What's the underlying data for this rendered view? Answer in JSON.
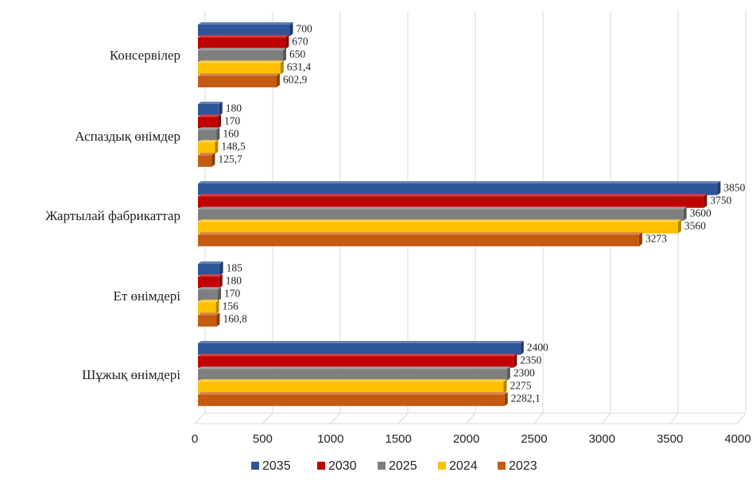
{
  "chart_data": {
    "type": "bar",
    "orientation": "horizontal",
    "style": "3d-clustered",
    "title": "",
    "xlabel": "",
    "ylabel": "",
    "xlim": [
      0,
      4000
    ],
    "x_ticks": [
      "0",
      "500",
      "1000",
      "1500",
      "2000",
      "2500",
      "3000",
      "3500",
      "4000"
    ],
    "grid": "vertical gridlines on",
    "legend_position": "bottom",
    "categories": [
      "Консервілер",
      "Аспаздық өнімдер",
      "Жартылай фабрикаттар",
      "Ет өнімдері",
      "Шұжық өнімдері"
    ],
    "series": [
      {
        "name": "2035",
        "color": "#2e5597",
        "values": [
          700,
          180,
          3850,
          185,
          2400
        ],
        "labels": [
          "700",
          "180",
          "3850",
          "185",
          "2400"
        ]
      },
      {
        "name": "2030",
        "color": "#c00000",
        "values": [
          670,
          170,
          3750,
          180,
          2350
        ],
        "labels": [
          "670",
          "170",
          "3750",
          "180",
          "2350"
        ]
      },
      {
        "name": "2025",
        "color": "#7f7f7f",
        "values": [
          650,
          160,
          3600,
          170,
          2300
        ],
        "labels": [
          "650",
          "160",
          "3600",
          "170",
          "2300"
        ]
      },
      {
        "name": "2024",
        "color": "#ffc000",
        "values": [
          631.4,
          148.5,
          3560,
          156,
          2275
        ],
        "labels": [
          "631,4",
          "148,5",
          "3560",
          "156",
          "2275"
        ]
      },
      {
        "name": "2023",
        "color": "#c55a11",
        "values": [
          602.9,
          125.7,
          3273,
          160.8,
          2282.1
        ],
        "labels": [
          "602,9",
          "125,7",
          "3273",
          "160,8",
          "2282,1"
        ]
      }
    ]
  }
}
